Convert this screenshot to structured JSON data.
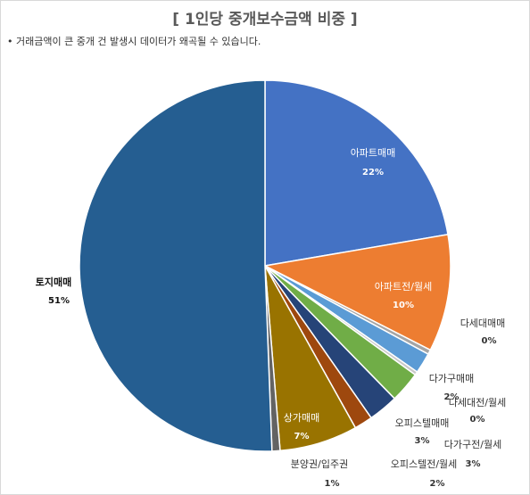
{
  "chart_data": {
    "type": "pie",
    "title": "[ 1인당 중개보수금액 비중 ]",
    "subtitle": "• 거래금액이 큰 중개 건 발생시 데이터가 왜곡될 수 있습니다.",
    "categories": [
      "아파트매매",
      "아파트전/월세",
      "다세대매매",
      "다가구매매",
      "다세대전/월세",
      "오피스텔매매",
      "다가구전/월세",
      "오피스텔전/월세",
      "상가매매",
      "분양권/입주권",
      "토지매매"
    ],
    "values": [
      22.3,
      10.2,
      0.4,
      1.8,
      0.3,
      2.7,
      2.6,
      1.6,
      6.8,
      0.7,
      50.6
    ],
    "value_labels": [
      "22%",
      "10%",
      "0%",
      "2%",
      "0%",
      "3%",
      "3%",
      "2%",
      "7%",
      "1%",
      "51%"
    ],
    "colors": [
      "#4472c4",
      "#ed7d31",
      "#a5a5a5",
      "#5b9bd5",
      "#c9c9c9",
      "#70ad47",
      "#264478",
      "#9e480e",
      "#997300",
      "#636363",
      "#255e91"
    ]
  }
}
